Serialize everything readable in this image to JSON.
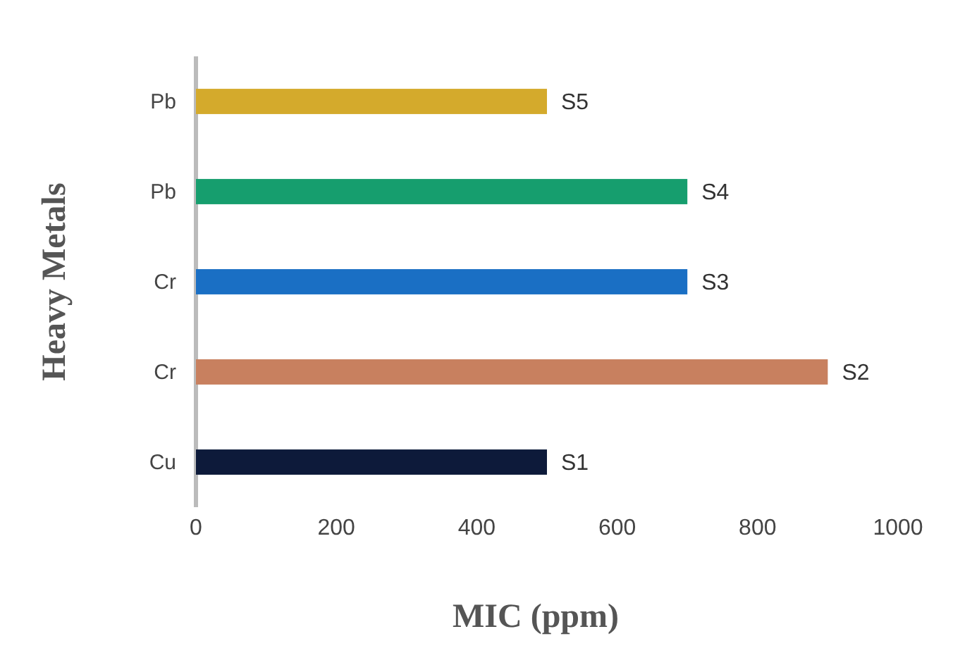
{
  "chart_data": {
    "type": "bar",
    "orientation": "horizontal",
    "xlabel": "MIC (ppm)",
    "ylabel": "Heavy Metals",
    "categories": [
      "Pb",
      "Pb",
      "Cr",
      "Cr",
      "Cu"
    ],
    "series": [
      {
        "name": "S5",
        "color": "#d4aa2c",
        "values": [
          500,
          null,
          null,
          null,
          null
        ]
      },
      {
        "name": "S4",
        "color": "#169e6e",
        "values": [
          null,
          700,
          null,
          null,
          null
        ]
      },
      {
        "name": "S3",
        "color": "#1a6fc4",
        "values": [
          null,
          null,
          700,
          null,
          null
        ]
      },
      {
        "name": "S2",
        "color": "#c8805f",
        "values": [
          null,
          null,
          null,
          900,
          null
        ]
      },
      {
        "name": "S1",
        "color": "#0d1a3a",
        "values": [
          null,
          null,
          null,
          null,
          500
        ]
      }
    ],
    "xlim": [
      0,
      1000
    ],
    "xticks": [
      0,
      200,
      400,
      600,
      800,
      1000
    ],
    "grid": false
  }
}
